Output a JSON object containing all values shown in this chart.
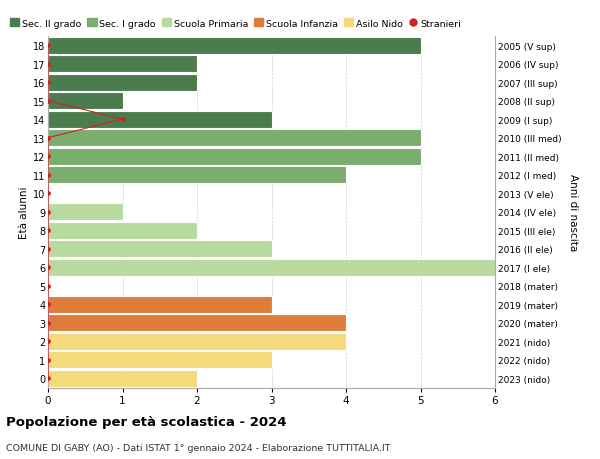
{
  "ages": [
    18,
    17,
    16,
    15,
    14,
    13,
    12,
    11,
    10,
    9,
    8,
    7,
    6,
    5,
    4,
    3,
    2,
    1,
    0
  ],
  "anni_nascita": [
    "2005 (V sup)",
    "2006 (IV sup)",
    "2007 (III sup)",
    "2008 (II sup)",
    "2009 (I sup)",
    "2010 (III med)",
    "2011 (II med)",
    "2012 (I med)",
    "2013 (V ele)",
    "2014 (IV ele)",
    "2015 (III ele)",
    "2016 (II ele)",
    "2017 (I ele)",
    "2018 (mater)",
    "2019 (mater)",
    "2020 (mater)",
    "2021 (nido)",
    "2022 (nido)",
    "2023 (nido)"
  ],
  "bar_values": [
    5,
    2,
    2,
    1,
    3,
    5,
    5,
    4,
    0,
    1,
    2,
    3,
    6,
    0,
    3,
    4,
    4,
    3,
    2
  ],
  "bar_colors": [
    "#4a7c4e",
    "#4a7c4e",
    "#4a7c4e",
    "#4a7c4e",
    "#4a7c4e",
    "#7aad6e",
    "#7aad6e",
    "#7aad6e",
    "#b8d9a0",
    "#b8d9a0",
    "#b8d9a0",
    "#b8d9a0",
    "#b8d9a0",
    "#e07c3a",
    "#e07c3a",
    "#e07c3a",
    "#f5d97a",
    "#f5d97a",
    "#f5d97a"
  ],
  "stranieri_dot_ages": [
    18,
    17,
    16,
    15,
    14,
    13,
    12,
    11,
    10,
    9,
    8,
    7,
    6,
    5,
    4,
    3,
    2,
    1,
    0
  ],
  "stranieri_dot_x": [
    0,
    0,
    0,
    0,
    1,
    0,
    0,
    0,
    0,
    0,
    0,
    0,
    0,
    0,
    0,
    0,
    0,
    0,
    0
  ],
  "legend_labels": [
    "Sec. II grado",
    "Sec. I grado",
    "Scuola Primaria",
    "Scuola Infanzia",
    "Asilo Nido",
    "Stranieri"
  ],
  "legend_colors": [
    "#4a7c4e",
    "#7aad6e",
    "#b8d9a0",
    "#e07c3a",
    "#f5d97a",
    "#cc2222"
  ],
  "title": "Popolazione per età scolastica - 2024",
  "subtitle": "COMUNE DI GABY (AO) - Dati ISTAT 1° gennaio 2024 - Elaborazione TUTTITALIA.IT",
  "ylabel_left": "Età alunni",
  "ylabel_right": "Anni di nascita",
  "xlim": [
    0,
    6
  ],
  "background_color": "#ffffff",
  "grid_color": "#cccccc"
}
